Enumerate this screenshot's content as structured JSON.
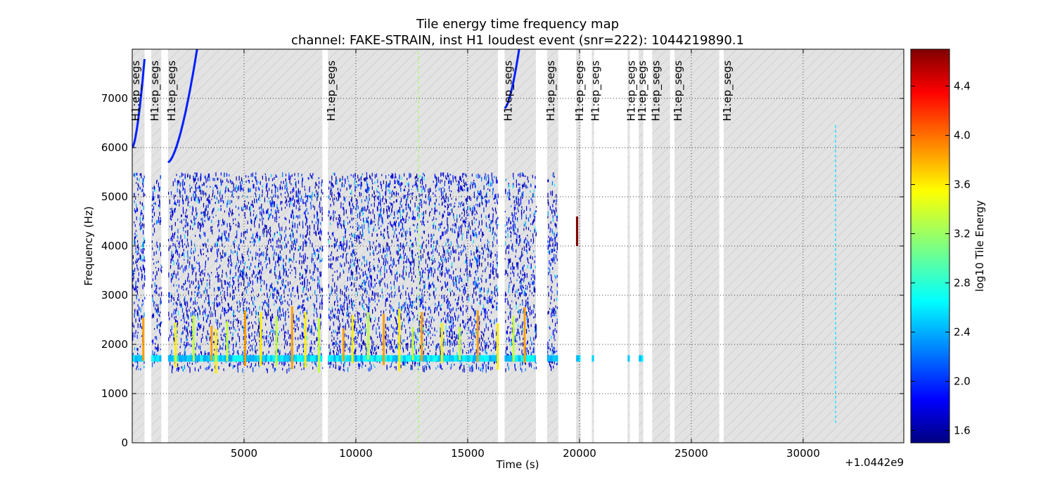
{
  "chart_data": {
    "type": "heatmap",
    "title": "Tile energy time frequency map",
    "subtitle": "channel: FAKE-STRAIN, inst H1 loudest event (snr=222): 1044219890.1",
    "xlabel": "Time (s)",
    "ylabel": "Frequency (Hz)",
    "x_offset_label": "+1.0442e9",
    "xlim": [
      0,
      34500
    ],
    "ylim": [
      0,
      8000
    ],
    "x_ticks": [
      5000,
      10000,
      15000,
      20000,
      25000,
      30000
    ],
    "y_ticks": [
      0,
      1000,
      2000,
      3000,
      4000,
      5000,
      6000,
      7000
    ],
    "grid": true,
    "colorbar": {
      "label": "log10 Tile Energy",
      "range": [
        1.5,
        4.7
      ],
      "ticks": [
        1.6,
        2.0,
        2.4,
        2.8,
        3.2,
        3.6,
        4.0,
        4.4
      ],
      "colormap": "jet"
    },
    "segment_label": "H1:ep_segs",
    "segments": [
      [
        0,
        550
      ],
      [
        850,
        1300
      ],
      [
        1600,
        8500
      ],
      [
        8750,
        16350
      ],
      [
        16650,
        18050
      ],
      [
        18550,
        19050
      ],
      [
        19850,
        20050
      ],
      [
        20550,
        20650
      ],
      [
        22150,
        22250
      ],
      [
        22650,
        22850
      ],
      [
        23250,
        24050
      ],
      [
        24250,
        26250
      ],
      [
        26450,
        34500
      ]
    ],
    "loudest_event": {
      "time": 19890,
      "freq_low": 4000,
      "freq_high": 4600,
      "log10_energy": 4.7
    },
    "features": [
      {
        "kind": "band",
        "f_low": 1650,
        "f_high": 1780,
        "log10_energy": 2.6
      },
      {
        "kind": "vertical_tracks",
        "times": [
          450,
          1900,
          2700,
          3500,
          3700,
          4200,
          5000,
          5700,
          6400,
          7100,
          7700,
          8300,
          9400,
          9800,
          10500,
          11200,
          11900,
          12500,
          12900,
          13800,
          14600,
          15400,
          16300,
          17000,
          17500
        ],
        "f_low": 1400,
        "f_high": 2800,
        "log10_energy": 3.8
      },
      {
        "kind": "chirp",
        "t_start": 0,
        "t_end": 550,
        "f_start": 6000,
        "f_end": 7800
      },
      {
        "kind": "chirp",
        "t_start": 1600,
        "t_end": 2900,
        "f_start": 5700,
        "f_end": 8000
      },
      {
        "kind": "chirp",
        "t_start": 16650,
        "t_end": 17300,
        "f_start": 6800,
        "f_end": 8000
      },
      {
        "kind": "line",
        "time": 12800,
        "f_low": 0,
        "f_high": 8000,
        "log10_energy": 3.2
      },
      {
        "kind": "line",
        "time": 31450,
        "f_low": 400,
        "f_high": 6500,
        "log10_energy": 2.6
      }
    ]
  }
}
